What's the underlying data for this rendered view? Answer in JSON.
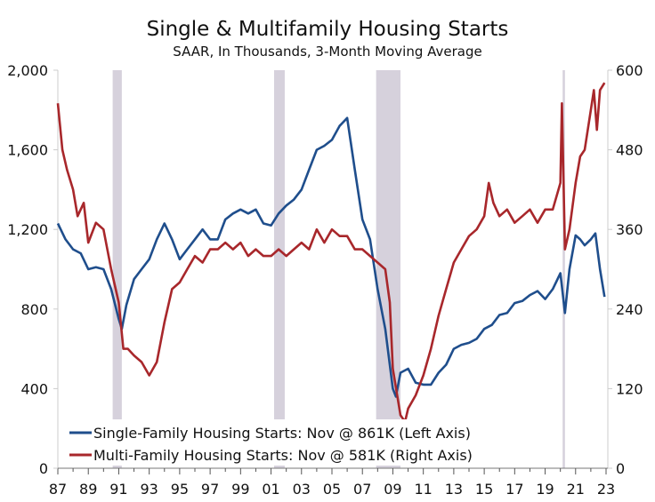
{
  "chart_data": {
    "type": "line",
    "title": "Single & Multifamily Housing Starts",
    "subtitle": "SAAR, In Thousands, 3-Month Moving Average",
    "xlim": [
      1987,
      2023
    ],
    "x_tick_labels": [
      "87",
      "89",
      "91",
      "93",
      "95",
      "97",
      "99",
      "01",
      "03",
      "05",
      "07",
      "09",
      "11",
      "13",
      "15",
      "17",
      "19",
      "21",
      "23"
    ],
    "x_tick_values": [
      1987,
      1989,
      1991,
      1993,
      1995,
      1997,
      1999,
      2001,
      2003,
      2005,
      2007,
      2009,
      2011,
      2013,
      2015,
      2017,
      2019,
      2021,
      2023
    ],
    "left_axis": {
      "ylim": [
        0,
        2000
      ],
      "ticks": [
        0,
        400,
        800,
        1200,
        1600,
        2000
      ],
      "tick_labels": [
        "0",
        "400",
        "800",
        "1,200",
        "1,600",
        "2,000"
      ]
    },
    "right_axis": {
      "ylim": [
        0,
        600
      ],
      "ticks": [
        0,
        120,
        240,
        360,
        480,
        600
      ],
      "tick_labels": [
        "0",
        "120",
        "240",
        "360",
        "480",
        "600"
      ]
    },
    "recessions": [
      [
        1990.6,
        1991.2
      ],
      [
        2001.2,
        2001.9
      ],
      [
        2007.9,
        2009.5
      ],
      [
        2020.15,
        2020.3
      ]
    ],
    "legend_placement": "bottom-left",
    "colors": {
      "single": "#1f4e8c",
      "multi": "#a8272b",
      "recession": "#d6d1dc"
    },
    "series": [
      {
        "name": "Single-Family Housing Starts: Nov @ 861K (Left Axis)",
        "axis": "left",
        "color": "#1f4e8c",
        "x": [
          1987,
          1987.5,
          1988,
          1988.5,
          1989,
          1989.5,
          1990,
          1990.5,
          1991,
          1991.2,
          1991.5,
          1992,
          1992.5,
          1993,
          1993.5,
          1994,
          1994.5,
          1995,
          1995.5,
          1996,
          1996.5,
          1997,
          1997.5,
          1998,
          1998.5,
          1999,
          1999.5,
          2000,
          2000.5,
          2001,
          2001.5,
          2002,
          2002.5,
          2003,
          2003.5,
          2004,
          2004.5,
          2005,
          2005.5,
          2006,
          2006.5,
          2007,
          2007.5,
          2008,
          2008.5,
          2009,
          2009.2,
          2009.5,
          2010,
          2010.5,
          2011,
          2011.5,
          2012,
          2012.5,
          2013,
          2013.5,
          2014,
          2014.5,
          2015,
          2015.5,
          2016,
          2016.5,
          2017,
          2017.5,
          2018,
          2018.5,
          2019,
          2019.5,
          2020,
          2020.3,
          2020.6,
          2021,
          2021.3,
          2021.6,
          2022,
          2022.3,
          2022.6,
          2022.9
        ],
        "y": [
          1230,
          1150,
          1100,
          1080,
          1000,
          1010,
          1000,
          900,
          750,
          700,
          820,
          950,
          1000,
          1050,
          1150,
          1230,
          1150,
          1050,
          1100,
          1150,
          1200,
          1150,
          1150,
          1250,
          1280,
          1300,
          1280,
          1300,
          1230,
          1220,
          1280,
          1320,
          1350,
          1400,
          1500,
          1600,
          1620,
          1650,
          1720,
          1760,
          1500,
          1250,
          1150,
          900,
          700,
          400,
          360,
          480,
          500,
          430,
          420,
          420,
          480,
          520,
          600,
          620,
          630,
          650,
          700,
          720,
          770,
          780,
          830,
          840,
          870,
          890,
          850,
          900,
          980,
          780,
          1000,
          1170,
          1150,
          1120,
          1150,
          1180,
          1000,
          861
        ]
      },
      {
        "name": "Multi-Family Housing Starts: Nov @ 581K (Right Axis)",
        "axis": "right",
        "color": "#a8272b",
        "x": [
          1987,
          1987.3,
          1987.6,
          1988,
          1988.3,
          1988.7,
          1989,
          1989.5,
          1990,
          1990.5,
          1991,
          1991.3,
          1991.6,
          1992,
          1992.5,
          1993,
          1993.5,
          1994,
          1994.5,
          1995,
          1995.5,
          1996,
          1996.5,
          1997,
          1997.5,
          1998,
          1998.5,
          1999,
          1999.5,
          2000,
          2000.5,
          2001,
          2001.5,
          2002,
          2002.5,
          2003,
          2003.5,
          2004,
          2004.5,
          2005,
          2005.5,
          2006,
          2006.5,
          2007,
          2007.5,
          2008,
          2008.5,
          2008.8,
          2009,
          2009.5,
          2009.8,
          2010,
          2010.5,
          2011,
          2011.5,
          2012,
          2012.5,
          2013,
          2013.5,
          2014,
          2014.5,
          2015,
          2015.3,
          2015.6,
          2016,
          2016.5,
          2017,
          2017.5,
          2018,
          2018.5,
          2019,
          2019.5,
          2020,
          2020.1,
          2020.3,
          2020.6,
          2021,
          2021.3,
          2021.6,
          2022,
          2022.2,
          2022.4,
          2022.6,
          2022.9
        ],
        "y": [
          550,
          480,
          450,
          420,
          380,
          400,
          340,
          370,
          360,
          300,
          250,
          180,
          180,
          170,
          160,
          140,
          160,
          220,
          270,
          280,
          300,
          320,
          310,
          330,
          330,
          340,
          330,
          340,
          320,
          330,
          320,
          320,
          330,
          320,
          330,
          340,
          330,
          360,
          340,
          360,
          350,
          350,
          330,
          330,
          320,
          310,
          300,
          250,
          150,
          80,
          70,
          90,
          110,
          140,
          180,
          230,
          270,
          310,
          330,
          350,
          360,
          380,
          430,
          400,
          380,
          390,
          370,
          380,
          390,
          370,
          390,
          390,
          430,
          550,
          330,
          360,
          430,
          470,
          480,
          540,
          570,
          510,
          570,
          581
        ]
      }
    ]
  }
}
